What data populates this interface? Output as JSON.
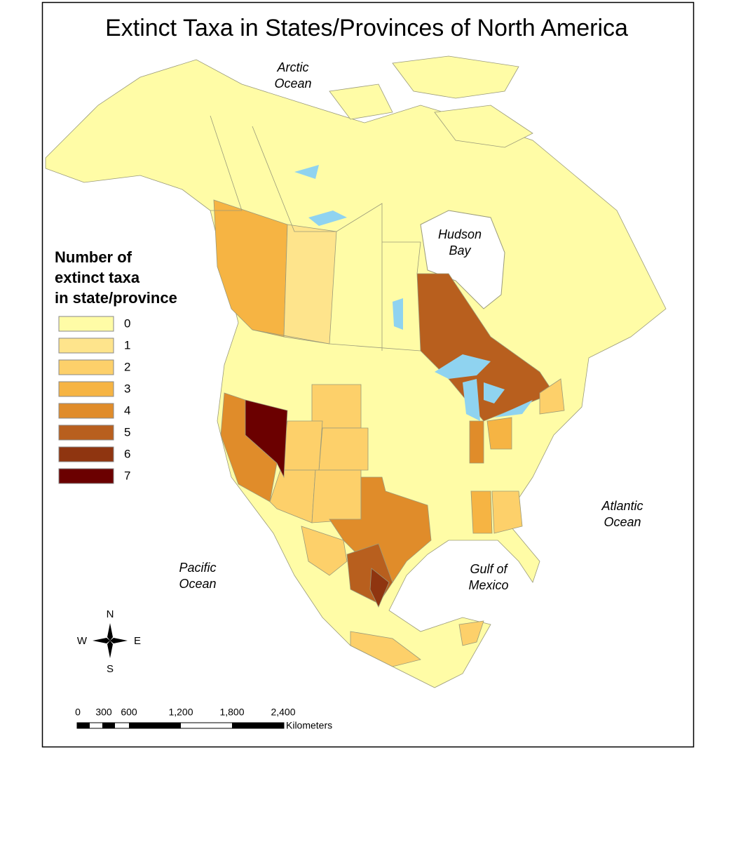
{
  "title": "Extinct Taxa in States/Provinces of North America",
  "legend": {
    "title_lines": [
      "Number of",
      "extinct taxa",
      "in state/province"
    ],
    "classes": [
      {
        "label": "0",
        "color": "#fffca6"
      },
      {
        "label": "1",
        "color": "#fee48c"
      },
      {
        "label": "2",
        "color": "#fdd06a"
      },
      {
        "label": "3",
        "color": "#f6b443"
      },
      {
        "label": "4",
        "color": "#e08c2a"
      },
      {
        "label": "5",
        "color": "#b85f1e"
      },
      {
        "label": "6",
        "color": "#8f3510"
      },
      {
        "label": "7",
        "color": "#6b0000"
      }
    ]
  },
  "water_labels": [
    {
      "lines": [
        "Arctic",
        "Ocean"
      ]
    },
    {
      "lines": [
        "Hudson",
        "Bay"
      ]
    },
    {
      "lines": [
        "Atlantic",
        "Ocean"
      ]
    },
    {
      "lines": [
        "Pacific",
        "Ocean"
      ]
    },
    {
      "lines": [
        "Gulf of",
        "Mexico"
      ]
    }
  ],
  "compass": {
    "n": "N",
    "s": "S",
    "e": "E",
    "w": "W"
  },
  "scale": {
    "ticks": [
      "0",
      "300",
      "600",
      "1,200",
      "1,800",
      "2,400"
    ],
    "unit": "Kilometers"
  }
}
